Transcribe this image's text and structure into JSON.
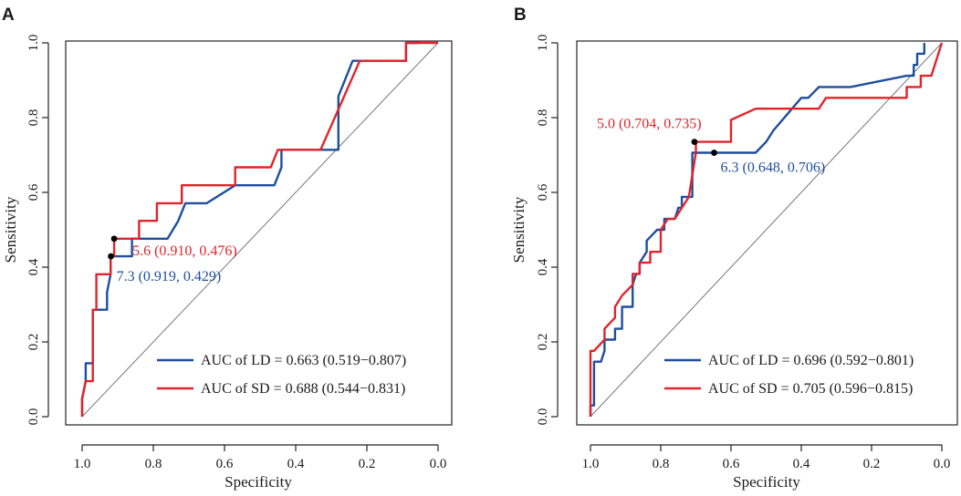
{
  "colors": {
    "ld": "#1f4e9c",
    "sd": "#e0242b",
    "diag": "#777777",
    "text": "#1a1a1a"
  },
  "chart_data": [
    {
      "type": "line",
      "panel": "A",
      "xlabel": "Specificity",
      "ylabel": "Sensitivity",
      "xlim": [
        1.0,
        0.0
      ],
      "ylim": [
        0.0,
        1.0
      ],
      "x_ticks": [
        "1.0",
        "0.8",
        "0.6",
        "0.4",
        "0.2",
        "0.0"
      ],
      "y_ticks": [
        "0.0",
        "0.2",
        "0.4",
        "0.6",
        "0.8",
        "1.0"
      ],
      "legend": [
        "AUC of LD = 0.663 (0.519−0.807)",
        "AUC of SD = 0.688 (0.544−0.831)"
      ],
      "legend_position": "bottom-right",
      "series": [
        {
          "name": "LD",
          "color": "#1f4e9c",
          "x": [
            1.0,
            1.0,
            0.99,
            0.99,
            0.97,
            0.97,
            0.96,
            0.96,
            0.93,
            0.93,
            0.92,
            0.92,
            0.9,
            0.9,
            0.86,
            0.86,
            0.76,
            0.73,
            0.71,
            0.65,
            0.57,
            0.46,
            0.44,
            0.44,
            0.28,
            0.28,
            0.28,
            0.24,
            0.22,
            0.09,
            0.09,
            0.05
          ],
          "y": [
            0.0,
            0.048,
            0.095,
            0.143,
            0.143,
            0.286,
            0.286,
            0.286,
            0.286,
            0.333,
            0.381,
            0.429,
            0.429,
            0.429,
            0.429,
            0.476,
            0.476,
            0.524,
            0.571,
            0.571,
            0.619,
            0.619,
            0.667,
            0.714,
            0.714,
            0.762,
            0.857,
            0.952,
            0.952,
            0.952,
            1.0,
            1.0
          ]
        },
        {
          "name": "SD",
          "color": "#e0242b",
          "x": [
            1.0,
            1.0,
            0.99,
            0.99,
            0.97,
            0.97,
            0.96,
            0.96,
            0.92,
            0.92,
            0.91,
            0.91,
            0.84,
            0.84,
            0.79,
            0.79,
            0.78,
            0.75,
            0.74,
            0.72,
            0.72,
            0.57,
            0.57,
            0.47,
            0.45,
            0.45,
            0.33,
            0.22,
            0.09,
            0.09,
            0.0
          ],
          "y": [
            0.0,
            0.048,
            0.095,
            0.095,
            0.095,
            0.286,
            0.286,
            0.381,
            0.381,
            0.429,
            0.429,
            0.476,
            0.476,
            0.524,
            0.524,
            0.571,
            0.571,
            0.571,
            0.571,
            0.571,
            0.619,
            0.619,
            0.667,
            0.667,
            0.714,
            0.714,
            0.714,
            0.952,
            0.952,
            1.0,
            1.0
          ]
        }
      ],
      "cutoffs": [
        {
          "label": "5.6 (0.910, 0.476)",
          "x": 0.91,
          "y": 0.476,
          "color": "#e0242b"
        },
        {
          "label": "7.3 (0.919, 0.429)",
          "x": 0.919,
          "y": 0.429,
          "color": "#1f4e9c"
        }
      ]
    },
    {
      "type": "line",
      "panel": "B",
      "xlabel": "Specificity",
      "ylabel": "Sensitivity",
      "xlim": [
        1.0,
        0.0
      ],
      "ylim": [
        0.0,
        1.0
      ],
      "x_ticks": [
        "1.0",
        "0.8",
        "0.6",
        "0.4",
        "0.2",
        "0.0"
      ],
      "y_ticks": [
        "0.0",
        "0.2",
        "0.4",
        "0.6",
        "0.8",
        "1.0"
      ],
      "legend": [
        "AUC of LD = 0.696 (0.592−0.801)",
        "AUC of SD = 0.705 (0.596−0.815)"
      ],
      "legend_position": "bottom-right",
      "series": [
        {
          "name": "LD",
          "color": "#1f4e9c",
          "x": [
            1.0,
            1.0,
            0.99,
            0.99,
            0.97,
            0.96,
            0.96,
            0.93,
            0.93,
            0.91,
            0.91,
            0.88,
            0.88,
            0.87,
            0.86,
            0.86,
            0.84,
            0.84,
            0.81,
            0.79,
            0.79,
            0.76,
            0.75,
            0.74,
            0.74,
            0.71,
            0.71,
            0.65,
            0.65,
            0.53,
            0.5,
            0.48,
            0.4,
            0.38,
            0.35,
            0.31,
            0.27,
            0.26,
            0.1,
            0.08,
            0.08,
            0.07,
            0.07,
            0.05,
            0.05
          ],
          "y": [
            0.0,
            0.03,
            0.03,
            0.147,
            0.147,
            0.176,
            0.206,
            0.206,
            0.235,
            0.235,
            0.294,
            0.294,
            0.353,
            0.382,
            0.382,
            0.412,
            0.441,
            0.471,
            0.5,
            0.5,
            0.529,
            0.529,
            0.559,
            0.559,
            0.588,
            0.588,
            0.706,
            0.706,
            0.706,
            0.706,
            0.735,
            0.765,
            0.853,
            0.853,
            0.882,
            0.882,
            0.882,
            0.882,
            0.912,
            0.912,
            0.941,
            0.941,
            0.971,
            0.971,
            1.0
          ]
        },
        {
          "name": "SD",
          "color": "#e0242b",
          "x": [
            1.0,
            1.0,
            0.99,
            0.99,
            0.96,
            0.96,
            0.93,
            0.93,
            0.91,
            0.91,
            0.88,
            0.88,
            0.86,
            0.86,
            0.83,
            0.83,
            0.8,
            0.8,
            0.78,
            0.76,
            0.72,
            0.7,
            0.7,
            0.6,
            0.6,
            0.53,
            0.53,
            0.4,
            0.35,
            0.33,
            0.27,
            0.15,
            0.1,
            0.1,
            0.06,
            0.06,
            0.03,
            0.0
          ],
          "y": [
            0.0,
            0.176,
            0.176,
            0.176,
            0.206,
            0.235,
            0.265,
            0.294,
            0.324,
            0.324,
            0.353,
            0.382,
            0.382,
            0.412,
            0.412,
            0.441,
            0.441,
            0.5,
            0.529,
            0.529,
            0.588,
            0.706,
            0.735,
            0.735,
            0.794,
            0.824,
            0.824,
            0.824,
            0.824,
            0.853,
            0.853,
            0.853,
            0.853,
            0.882,
            0.882,
            0.912,
            0.912,
            1.0
          ]
        }
      ],
      "cutoffs": [
        {
          "label": "5.0 (0.704, 0.735)",
          "x": 0.704,
          "y": 0.735,
          "color": "#e0242b"
        },
        {
          "label": "6.3 (0.648, 0.706)",
          "x": 0.648,
          "y": 0.706,
          "color": "#1f4e9c"
        }
      ]
    }
  ]
}
